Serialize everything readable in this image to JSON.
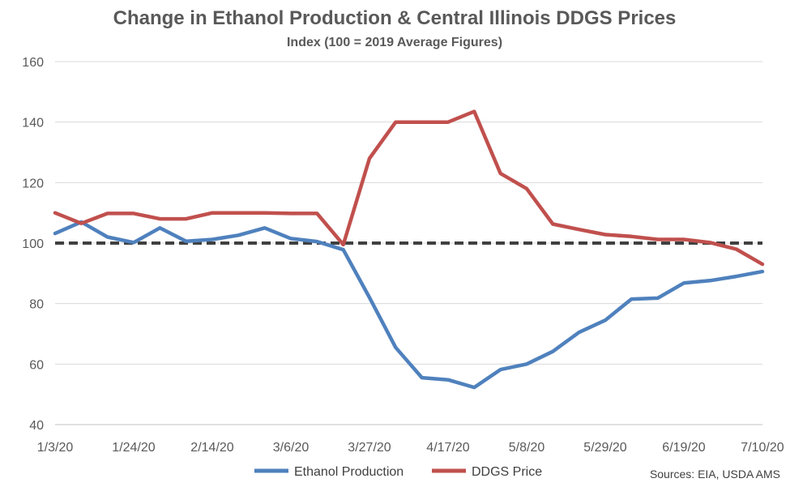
{
  "chart_data": {
    "type": "line",
    "title": "Change in Ethanol Production & Central Illinois DDGS Prices",
    "subtitle": "Index (100 = 2019 Average Figures)",
    "x": [
      "1/3/20",
      "1/10/20",
      "1/17/20",
      "1/24/20",
      "1/31/20",
      "2/7/20",
      "2/14/20",
      "2/21/20",
      "2/28/20",
      "3/6/20",
      "3/13/20",
      "3/20/20",
      "3/27/20",
      "4/3/20",
      "4/10/20",
      "4/17/20",
      "4/24/20",
      "5/1/20",
      "5/8/20",
      "5/15/20",
      "5/22/20",
      "5/29/20",
      "6/5/20",
      "6/12/20",
      "6/19/20",
      "6/26/20",
      "7/3/20",
      "7/10/20"
    ],
    "x_tick_labels": [
      "1/3/20",
      "1/24/20",
      "2/14/20",
      "3/6/20",
      "3/27/20",
      "4/17/20",
      "5/8/20",
      "5/29/20",
      "6/19/20",
      "7/10/20"
    ],
    "ylim": [
      40,
      160
    ],
    "y_ticks": [
      40,
      60,
      80,
      100,
      120,
      140,
      160
    ],
    "grid": true,
    "legend_position": "bottom",
    "reference_line": {
      "value": 100,
      "style": "dashed",
      "color": "#404040"
    },
    "series": [
      {
        "name": "Ethanol Production",
        "color": "#4F81BD",
        "values": [
          103.2,
          107.0,
          102.0,
          100.2,
          105.0,
          100.6,
          101.2,
          102.6,
          105.0,
          101.5,
          100.5,
          97.8,
          82.0,
          65.5,
          55.5,
          54.8,
          52.3,
          58.2,
          60.0,
          64.2,
          70.5,
          74.5,
          81.5,
          81.8,
          86.8,
          87.6,
          89.0,
          90.6
        ]
      },
      {
        "name": "DDGS Price",
        "color": "#C0504D",
        "values": [
          110.0,
          106.5,
          109.8,
          109.8,
          108.0,
          108.0,
          110.0,
          110.0,
          110.0,
          109.8,
          109.8,
          99.5,
          128.0,
          140.0,
          140.0,
          140.0,
          143.5,
          123.0,
          118.0,
          106.3,
          104.5,
          102.8,
          102.2,
          101.2,
          101.2,
          100.2,
          98.0,
          93.0
        ]
      }
    ]
  },
  "footer": {
    "source": "Sources: EIA, USDA AMS"
  }
}
